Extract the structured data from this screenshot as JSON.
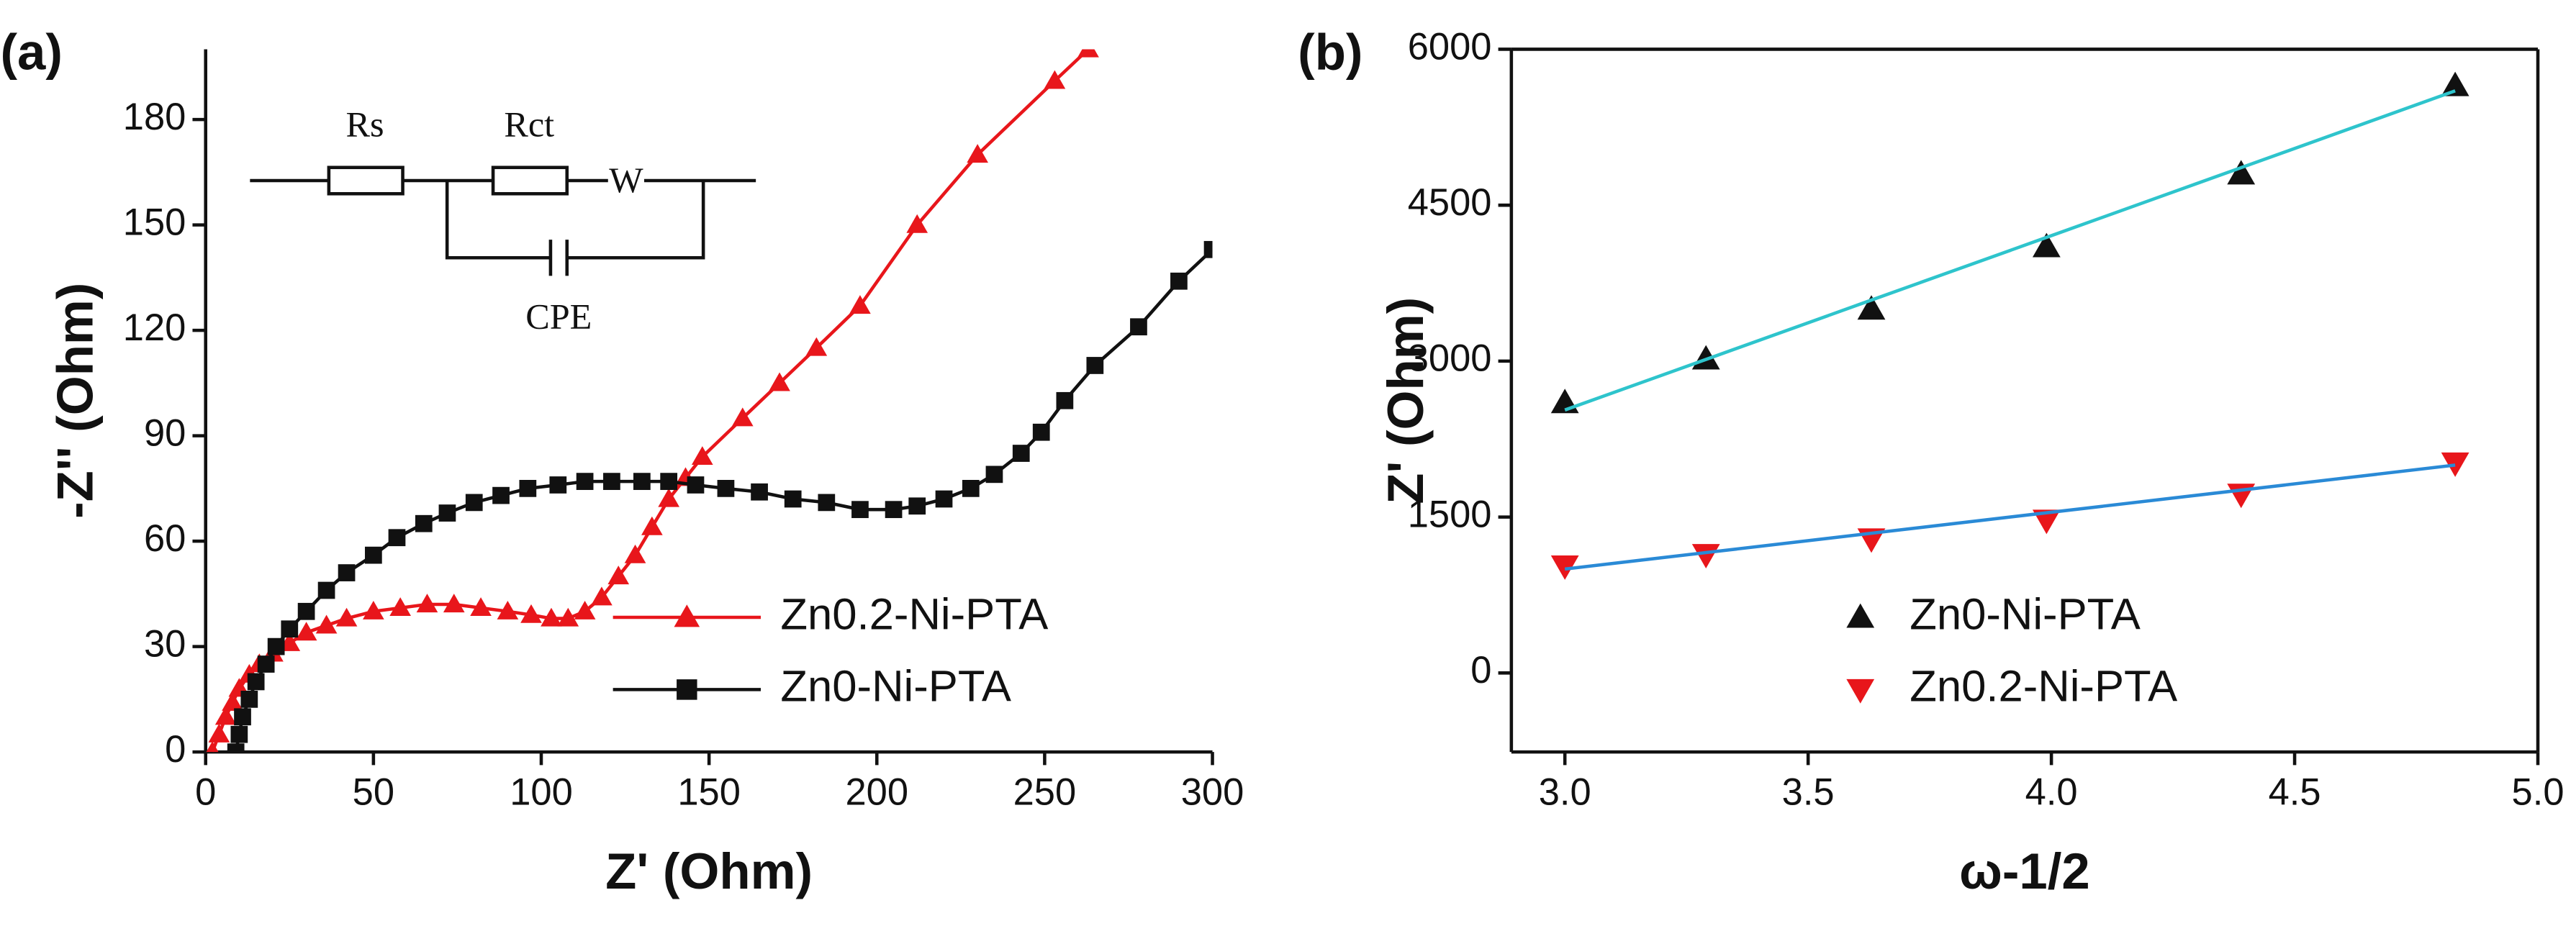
{
  "chart_data": [
    {
      "type": "line",
      "panel_label": "(a)",
      "x_label": "Z' (Ohm)",
      "y_label": "-Z'' (Ohm)",
      "xlim": [
        0,
        300
      ],
      "xticks": [
        0,
        50,
        100,
        150,
        200,
        250,
        300
      ],
      "ylim": [
        0,
        200
      ],
      "yticks": [
        0,
        30,
        60,
        90,
        120,
        150,
        180
      ],
      "frame": "axes",
      "legend": "lower right",
      "inset_labels": [
        "Rs",
        "Rct",
        "W",
        "CPE"
      ],
      "series": [
        {
          "name": "Zn0.2-Ni-PTA",
          "color": "#e8161b",
          "marker": "triangle-up",
          "style": "line-marker",
          "x": [
            2,
            4,
            6,
            8,
            10,
            13,
            16,
            20,
            25,
            30,
            36,
            42,
            50,
            58,
            66,
            74,
            82,
            90,
            97,
            103,
            108,
            113,
            118,
            123,
            128,
            133,
            138,
            143,
            148,
            160,
            171,
            182,
            195,
            212,
            230,
            253,
            263
          ],
          "values": [
            0,
            5,
            10,
            14,
            18,
            22,
            25,
            28,
            31,
            34,
            36,
            38,
            40,
            41,
            42,
            42,
            41,
            40,
            39,
            38,
            38,
            40,
            44,
            50,
            56,
            64,
            72,
            78,
            84,
            95,
            105,
            115,
            127,
            150,
            170,
            191,
            200
          ]
        },
        {
          "name": "Zn0-Ni-PTA",
          "color": "#111111",
          "marker": "square",
          "style": "line-marker",
          "x": [
            9,
            10,
            11,
            13,
            15,
            18,
            21,
            25,
            30,
            36,
            42,
            50,
            57,
            65,
            72,
            80,
            88,
            96,
            105,
            113,
            121,
            130,
            138,
            146,
            155,
            165,
            175,
            185,
            195,
            205,
            212,
            220,
            228,
            235,
            243,
            249,
            256,
            265,
            278,
            290,
            300
          ],
          "values": [
            0,
            5,
            10,
            15,
            20,
            25,
            30,
            35,
            40,
            46,
            51,
            56,
            61,
            65,
            68,
            71,
            73,
            75,
            76,
            77,
            77,
            77,
            77,
            76,
            75,
            74,
            72,
            71,
            69,
            69,
            70,
            72,
            75,
            79,
            85,
            91,
            100,
            110,
            121,
            134,
            143
          ]
        }
      ]
    },
    {
      "type": "scatter",
      "panel_label": "(b)",
      "x_label": "ω-1/2",
      "y_label": "Z' (Ohm)",
      "xlim": [
        2.89,
        5.0
      ],
      "xticks": [
        {
          "value": 3,
          "label": "3.0"
        },
        3.5,
        {
          "value": 4,
          "label": "4.0"
        },
        4.5,
        {
          "value": 5,
          "label": "5.0"
        }
      ],
      "ylim": [
        -760,
        6000
      ],
      "yticks": [
        0,
        1500,
        3000,
        4500,
        6000
      ],
      "frame": "box",
      "legend": "lower center",
      "series": [
        {
          "name": "Zn0-Ni-PTA",
          "color": "#111111",
          "marker": "triangle-up",
          "style": "marker",
          "x": [
            3.0,
            3.29,
            3.63,
            3.99,
            4.39,
            4.83
          ],
          "values": [
            2600,
            3020,
            3500,
            4100,
            4800,
            5650
          ]
        },
        {
          "name": "Zn0.2-Ni-PTA",
          "color": "#e8161b",
          "marker": "triangle-down",
          "style": "marker",
          "x": [
            3.0,
            3.29,
            3.63,
            3.99,
            4.39,
            4.83
          ],
          "values": [
            1030,
            1140,
            1290,
            1470,
            1720,
            2020
          ]
        },
        {
          "color": "#2ec4cc",
          "style": "line",
          "x": [
            3.0,
            3.29,
            3.63,
            3.99,
            4.39,
            4.83
          ],
          "values": [
            2530,
            3016,
            3587,
            4190,
            4861,
            5600
          ]
        },
        {
          "color": "#2a8ad6",
          "style": "line",
          "x": [
            3.0,
            3.29,
            3.63,
            3.99,
            4.39,
            4.83
          ],
          "values": [
            1000,
            1158,
            1344,
            1541,
            1759,
            2000
          ]
        }
      ]
    }
  ]
}
